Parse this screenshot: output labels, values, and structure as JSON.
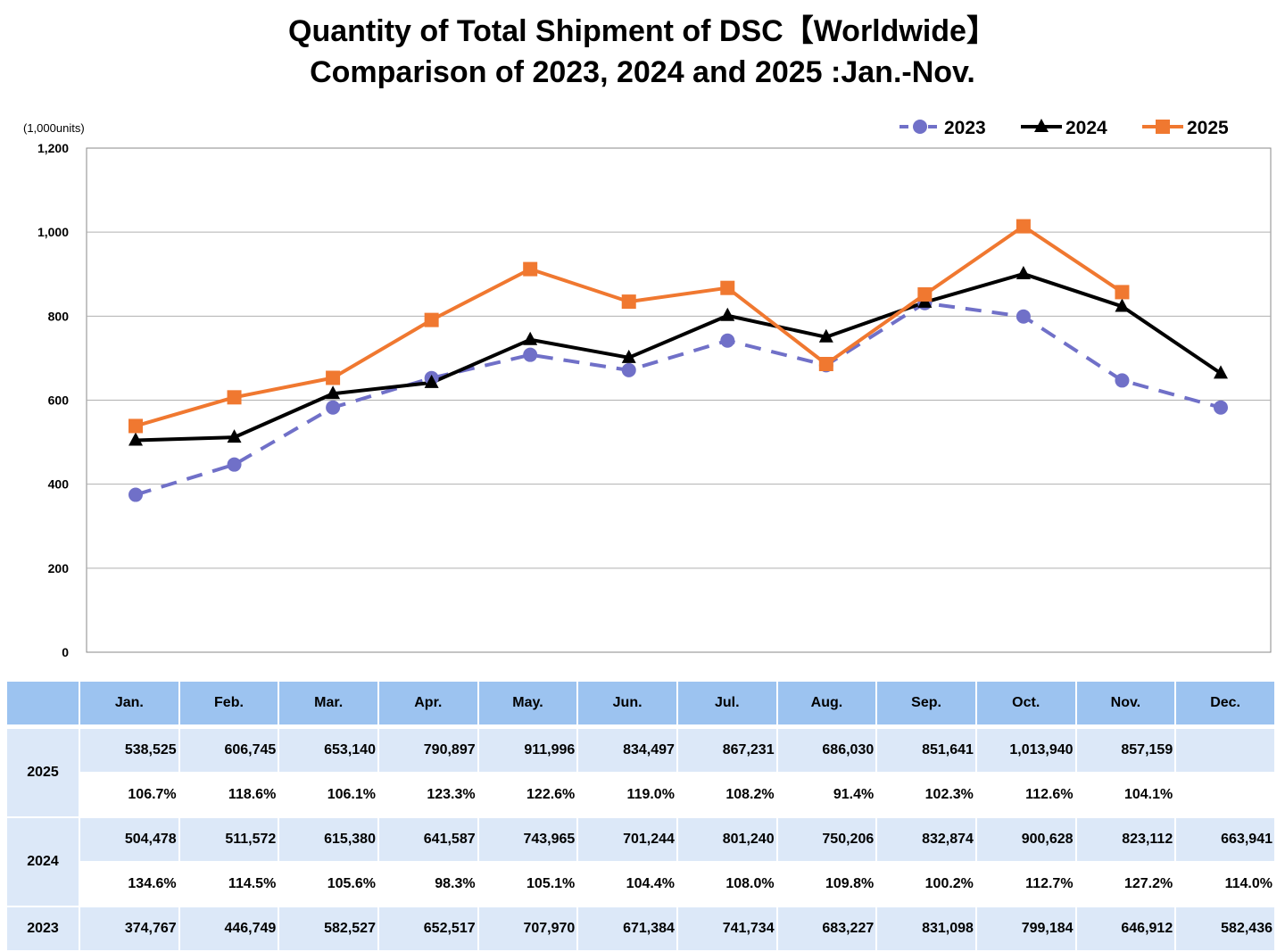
{
  "title_line1": "Quantity of Total Shipment of DSC【Worldwide】",
  "title_line2": "Comparison of 2023, 2024 and 2025 :Jan.-Nov.",
  "chart_data": {
    "type": "line",
    "ylabel": "(1,000units)",
    "ylim": [
      0,
      1200
    ],
    "yticks": [
      "0",
      "200",
      "400",
      "600",
      "800",
      "1,000",
      "1,200"
    ],
    "yticks_values": [
      0,
      200,
      400,
      600,
      800,
      1000,
      1200
    ],
    "grid": true,
    "legend_position": "top-right",
    "categories": [
      "Jan.",
      "Feb.",
      "Mar.",
      "Apr.",
      "May.",
      "Jun.",
      "Jul.",
      "Aug.",
      "Sep.",
      "Oct.",
      "Nov.",
      "Dec."
    ],
    "series": [
      {
        "name": "2023",
        "color": "#7070c8",
        "marker": "circle",
        "dashed": true,
        "values": [
          374.767,
          446.749,
          582.527,
          652.517,
          707.97,
          671.384,
          741.734,
          683.227,
          831.098,
          799.184,
          646.912,
          582.436
        ]
      },
      {
        "name": "2024",
        "color": "#000000",
        "marker": "triangle",
        "dashed": false,
        "values": [
          504.478,
          511.572,
          615.38,
          641.587,
          743.965,
          701.244,
          801.24,
          750.206,
          832.874,
          900.628,
          823.112,
          663.941
        ]
      },
      {
        "name": "2025",
        "color": "#f07830",
        "marker": "square",
        "dashed": false,
        "values": [
          538.525,
          606.745,
          653.14,
          790.897,
          911.996,
          834.497,
          867.231,
          686.03,
          851.641,
          1013.94,
          857.159,
          null
        ]
      }
    ]
  },
  "table": {
    "columns": [
      "Jan.",
      "Feb.",
      "Mar.",
      "Apr.",
      "May.",
      "Jun.",
      "Jul.",
      "Aug.",
      "Sep.",
      "Oct.",
      "Nov.",
      "Dec."
    ],
    "rows": [
      {
        "label": "2025",
        "values": [
          "538,525",
          "606,745",
          "653,140",
          "790,897",
          "911,996",
          "834,497",
          "867,231",
          "686,030",
          "851,641",
          "1,013,940",
          "857,159",
          ""
        ],
        "ratios": [
          "106.7%",
          "118.6%",
          "106.1%",
          "123.3%",
          "122.6%",
          "119.0%",
          "108.2%",
          "91.4%",
          "102.3%",
          "112.6%",
          "104.1%",
          ""
        ]
      },
      {
        "label": "2024",
        "values": [
          "504,478",
          "511,572",
          "615,380",
          "641,587",
          "743,965",
          "701,244",
          "801,240",
          "750,206",
          "832,874",
          "900,628",
          "823,112",
          "663,941"
        ],
        "ratios": [
          "134.6%",
          "114.5%",
          "105.6%",
          "98.3%",
          "105.1%",
          "104.4%",
          "108.0%",
          "109.8%",
          "100.2%",
          "112.7%",
          "127.2%",
          "114.0%"
        ]
      },
      {
        "label": "2023",
        "values": [
          "374,767",
          "446,749",
          "582,527",
          "652,517",
          "707,970",
          "671,384",
          "741,734",
          "683,227",
          "831,098",
          "799,184",
          "646,912",
          "582,436"
        ]
      }
    ]
  }
}
